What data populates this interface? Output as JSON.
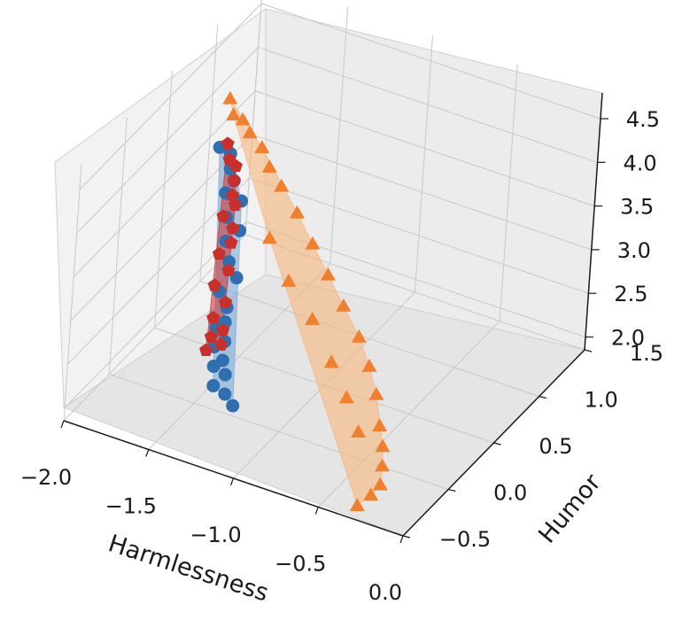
{
  "chart_data": {
    "type": "scatter",
    "projection": "3d",
    "title": "",
    "xlabel": "Harmlessness",
    "ylabel": "Humor",
    "zlabel": "",
    "xlim": [
      -2.0,
      0.0
    ],
    "ylim": [
      -0.5,
      1.5
    ],
    "zlim": [
      2.0,
      4.5
    ],
    "xticks": [
      "−2.0",
      "−1.5",
      "−1.0",
      "−0.5",
      "0.0"
    ],
    "yticks": [
      "−0.5",
      "0.0",
      "0.5",
      "1.0",
      "1.5"
    ],
    "zticks": [
      "2.0",
      "2.5",
      "3.0",
      "3.5",
      "4.0",
      "4.5"
    ],
    "grid": true,
    "legend": "none",
    "series": [
      {
        "color": "#2f6fb0",
        "fill": "#7aa9d6",
        "marker": "circle",
        "points": [
          [
            -1.72,
            0.55,
            4.05
          ],
          [
            -1.68,
            0.6,
            3.95
          ],
          [
            -1.65,
            0.55,
            3.85
          ],
          [
            -1.6,
            0.5,
            3.8
          ],
          [
            -1.62,
            0.45,
            3.7
          ],
          [
            -1.55,
            0.5,
            3.6
          ],
          [
            -1.58,
            0.4,
            3.5
          ],
          [
            -1.5,
            0.4,
            3.4
          ],
          [
            -1.55,
            0.35,
            3.3
          ],
          [
            -1.5,
            0.3,
            3.15
          ],
          [
            -1.45,
            0.3,
            3.0
          ],
          [
            -1.52,
            0.25,
            2.85
          ],
          [
            -1.47,
            0.25,
            2.7
          ],
          [
            -1.45,
            0.2,
            2.6
          ],
          [
            -1.5,
            0.2,
            2.5
          ],
          [
            -1.42,
            0.15,
            2.45
          ],
          [
            -1.48,
            0.15,
            2.35
          ],
          [
            -1.4,
            0.1,
            2.3
          ],
          [
            -1.45,
            0.1,
            2.2
          ],
          [
            -1.38,
            0.1,
            2.15
          ],
          [
            -1.42,
            0.05,
            2.05
          ],
          [
            -1.35,
            0.05,
            2.0
          ],
          [
            -1.3,
            0.05,
            1.9
          ]
        ]
      },
      {
        "color": "#c9302c",
        "fill": "#c9302c",
        "marker": "pentagon",
        "points": [
          [
            -1.7,
            0.6,
            4.05
          ],
          [
            -1.66,
            0.55,
            3.95
          ],
          [
            -1.62,
            0.55,
            3.9
          ],
          [
            -1.6,
            0.5,
            3.8
          ],
          [
            -1.58,
            0.45,
            3.7
          ],
          [
            -1.56,
            0.45,
            3.6
          ],
          [
            -1.6,
            0.4,
            3.5
          ],
          [
            -1.54,
            0.4,
            3.4
          ],
          [
            -1.52,
            0.35,
            3.3
          ],
          [
            -1.56,
            0.3,
            3.2
          ],
          [
            -1.5,
            0.3,
            3.05
          ],
          [
            -1.55,
            0.25,
            2.9
          ],
          [
            -1.48,
            0.25,
            2.75
          ],
          [
            -1.52,
            0.2,
            2.6
          ],
          [
            -1.46,
            0.2,
            2.5
          ],
          [
            -1.5,
            0.15,
            2.45
          ],
          [
            -1.44,
            0.15,
            2.4
          ],
          [
            -1.5,
            0.1,
            2.35
          ]
        ]
      },
      {
        "color": "#f07f2e",
        "fill": "#f6b57d",
        "marker": "triangle",
        "points": [
          [
            -1.85,
            0.9,
            4.15
          ],
          [
            -1.8,
            0.85,
            4.05
          ],
          [
            -1.72,
            0.8,
            4.1
          ],
          [
            -1.65,
            0.75,
            4.05
          ],
          [
            -1.55,
            0.7,
            4.0
          ],
          [
            -1.45,
            0.6,
            3.95
          ],
          [
            -1.35,
            0.55,
            3.85
          ],
          [
            -1.2,
            0.45,
            3.75
          ],
          [
            -1.05,
            0.35,
            3.6
          ],
          [
            -0.9,
            0.25,
            3.45
          ],
          [
            -0.75,
            0.15,
            3.3
          ],
          [
            -0.6,
            0.05,
            3.15
          ],
          [
            -0.48,
            -0.05,
            3.0
          ],
          [
            -0.38,
            -0.15,
            2.85
          ],
          [
            -0.3,
            -0.25,
            2.65
          ],
          [
            -0.25,
            -0.3,
            2.5
          ],
          [
            -0.22,
            -0.35,
            2.35
          ],
          [
            -0.2,
            -0.4,
            2.2
          ],
          [
            -0.25,
            -0.4,
            2.05
          ],
          [
            -0.3,
            -0.45,
            1.95
          ],
          [
            -1.3,
            0.35,
            3.5
          ],
          [
            -1.1,
            0.2,
            3.3
          ],
          [
            -0.9,
            0.1,
            3.1
          ],
          [
            -0.7,
            -0.05,
            2.9
          ],
          [
            -0.55,
            -0.15,
            2.7
          ],
          [
            -0.42,
            -0.25,
            2.5
          ]
        ]
      }
    ]
  }
}
